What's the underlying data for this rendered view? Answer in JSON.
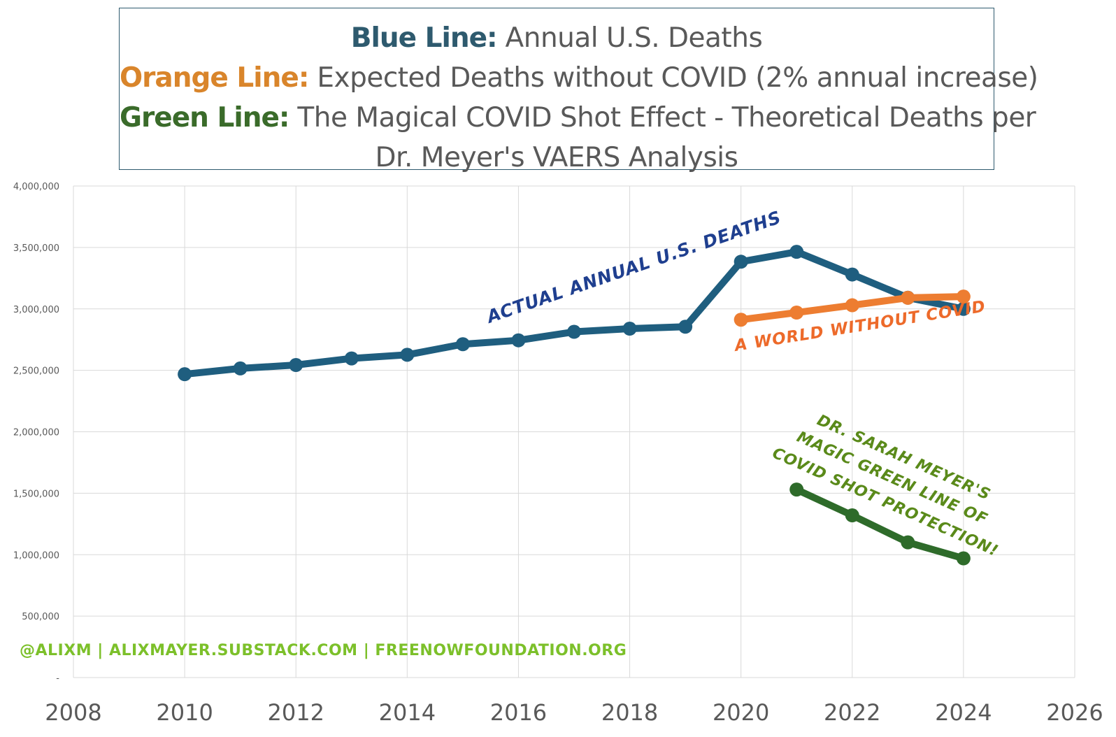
{
  "legend": {
    "line1_key": "Blue Line:",
    "line1_text": " Annual U.S. Deaths",
    "line2_key": "Orange Line:",
    "line2_text": " Expected Deaths without COVID (2% annual increase)",
    "line3_key": "Green Line:",
    "line3_text": " The Magical COVID Shot Effect - Theoretical Deaths per",
    "line4_text": "Dr. Meyer's VAERS Analysis"
  },
  "annotations": {
    "blue": "ACTUAL ANNUAL U.S. DEATHS",
    "orange": "A WORLD WITHOUT COVID",
    "green_1": "DR. SARAH MEYER'S",
    "green_2": "MAGIC GREEN LINE OF",
    "green_3": "COVID SHOT PROTECTION!"
  },
  "credits": "@ALIXM  |  ALIXMAYER.SUBSTACK.COM  |  FREENOWFOUNDATION.ORG",
  "colors": {
    "blue": "#1f5e7f",
    "orange": "#ed7d31",
    "green": "#2e6b2a",
    "blue_label": "#1f3f8f",
    "orange_label": "#ed6a2a",
    "green_label": "#5a8a1a",
    "credits": "#7cc02a",
    "grid": "#d9d9d9"
  },
  "chart_data": {
    "type": "line",
    "xlim": [
      2008,
      2026
    ],
    "ylim": [
      0,
      4000000
    ],
    "x_ticks": [
      "2008",
      "2010",
      "2012",
      "2014",
      "2016",
      "2018",
      "2020",
      "2022",
      "2024",
      "2026"
    ],
    "y_ticks": [
      "-",
      "500,000",
      "1,000,000",
      "1,500,000",
      "2,000,000",
      "2,500,000",
      "3,000,000",
      "3,500,000",
      "4,000,000"
    ],
    "grid": true,
    "series": [
      {
        "key": "blue",
        "x": [
          2010,
          2011,
          2012,
          2013,
          2014,
          2015,
          2016,
          2017,
          2018,
          2019,
          2020,
          2021,
          2022,
          2023,
          2024
        ],
        "y": [
          2468435,
          2515458,
          2543279,
          2596993,
          2626418,
          2712630,
          2744248,
          2813503,
          2839205,
          2854838,
          3383729,
          3464231,
          3279857,
          3090964,
          3000000
        ]
      },
      {
        "key": "orange",
        "x": [
          2020,
          2021,
          2022,
          2023,
          2024
        ],
        "y": [
          2911935,
          2970174,
          3029578,
          3090169,
          3100000
        ]
      },
      {
        "key": "green",
        "x": [
          2021,
          2022,
          2023,
          2024
        ],
        "y": [
          1530000,
          1320000,
          1100000,
          970000
        ]
      }
    ]
  }
}
